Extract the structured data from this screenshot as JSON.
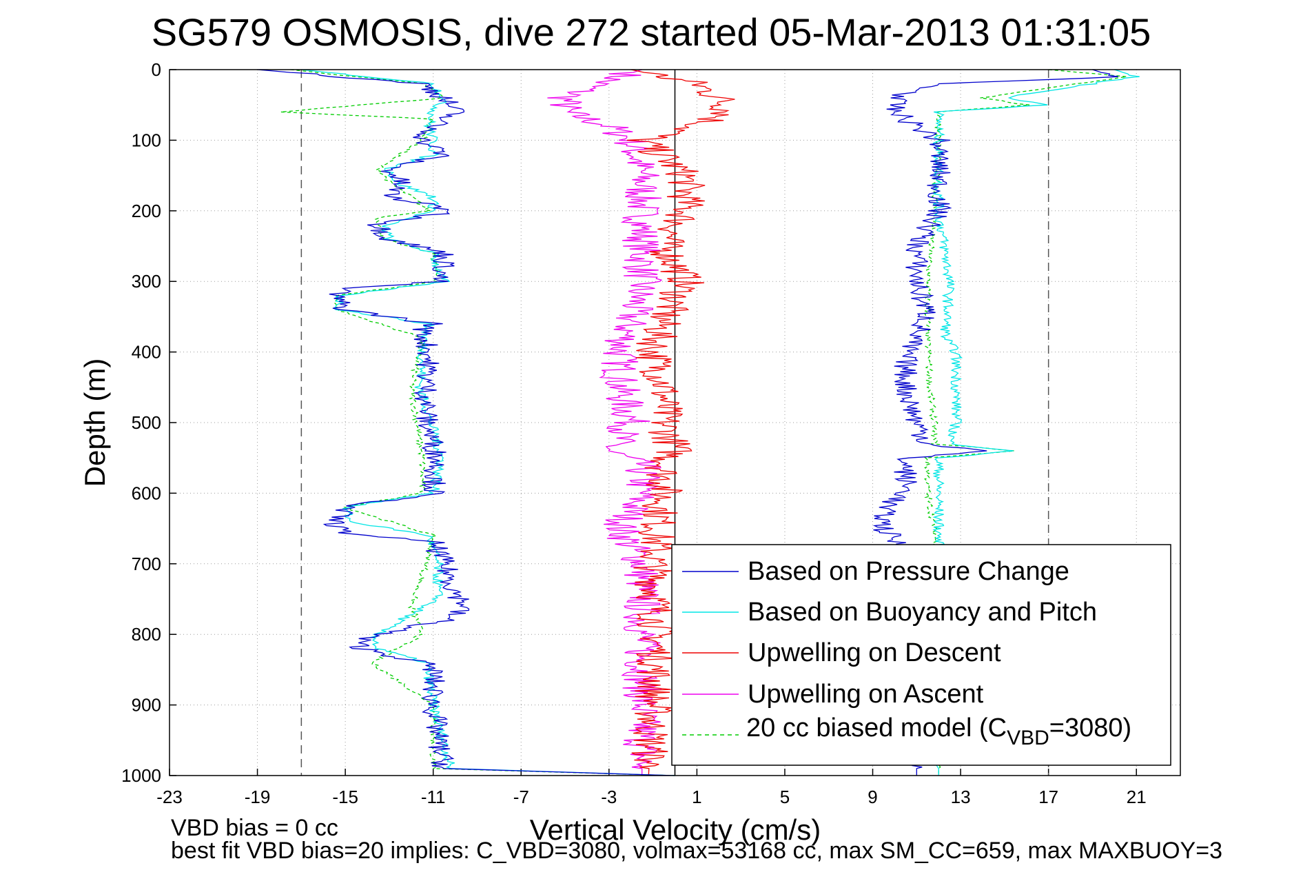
{
  "chart_data": {
    "type": "line",
    "title": "SG579 OSMOSIS, dive 272 started 05-Mar-2013 01:31:05",
    "xlabel": "Vertical Velocity (cm/s)",
    "ylabel": "Depth (m)",
    "xlim": [
      -23,
      23
    ],
    "ylim": [
      0,
      1000
    ],
    "y_reversed": true,
    "x_ticks": [
      "-23",
      "-19",
      "-15",
      "-11",
      "-7",
      "-3",
      "1",
      "5",
      "9",
      "13",
      "17",
      "21"
    ],
    "y_ticks": [
      "0",
      "100",
      "200",
      "300",
      "400",
      "500",
      "600",
      "700",
      "800",
      "900",
      "1000"
    ],
    "grid": "dotted",
    "vertical_lines": [
      {
        "x": 0,
        "style": "solid",
        "color": "#000000"
      },
      {
        "x": -17,
        "style": "dashed",
        "color": "#555555"
      },
      {
        "x": 17,
        "style": "dashed",
        "color": "#555555"
      }
    ],
    "footnotes": [
      "VBD bias = 0 cc",
      "best fit VBD bias=20 implies: C_VBD=3080, volmax=53168 cc, max SM_CC=659, max MAXBUOY=3"
    ],
    "legend": {
      "position": "bottom-right",
      "entries": [
        {
          "label": "Based on Pressure Change",
          "color": "#0000cc",
          "style": "solid"
        },
        {
          "label": "Based on Buoyancy and Pitch",
          "color": "#00e5e5",
          "style": "solid"
        },
        {
          "label": "Upwelling on Descent",
          "color": "#ee0000",
          "style": "solid"
        },
        {
          "label": "Upwelling on Ascent",
          "color": "#ee00ee",
          "style": "solid"
        },
        {
          "label": "20 cc biased model (C_VBD=3080)",
          "label_main": "20 cc biased model (C",
          "label_sub": "VBD",
          "label_end": "=3080)",
          "color": "#00cc00",
          "style": "dashed"
        }
      ]
    },
    "series": [
      {
        "color": "#0000cc",
        "profile": "pressure_change",
        "descent_depths": [
          0,
          20,
          40,
          60,
          80,
          100,
          120,
          140,
          160,
          180,
          200,
          220,
          240,
          260,
          280,
          300,
          310,
          320,
          340,
          360,
          370,
          400,
          450,
          500,
          550,
          600,
          620,
          640,
          655,
          670,
          700,
          740,
          760,
          780,
          800,
          810,
          820,
          840,
          850,
          900,
          950,
          990,
          1000
        ],
        "descent_values": [
          -19,
          -11.5,
          -10.5,
          -10,
          -11,
          -11.5,
          -10.5,
          -13,
          -12.5,
          -13,
          -10,
          -13.5,
          -13,
          -10.5,
          -10.5,
          -10.8,
          -15,
          -15.5,
          -15,
          -11,
          -11.5,
          -11.2,
          -11.3,
          -11.3,
          -10.8,
          -11,
          -15,
          -15.5,
          -15.2,
          -11,
          -10.5,
          -10,
          -9.5,
          -10.5,
          -13.5,
          -14.5,
          -14.2,
          -11.5,
          -11,
          -11,
          -10.8,
          -10.5,
          0
        ],
        "ascent_depths": [
          0,
          10,
          20,
          40,
          60,
          80,
          100,
          120,
          150,
          180,
          200,
          250,
          300,
          350,
          400,
          450,
          500,
          530,
          540,
          550,
          580,
          600,
          620,
          650,
          700,
          800,
          900,
          1000
        ],
        "ascent_values": [
          19,
          20,
          12,
          10,
          10,
          11,
          12,
          12,
          12,
          12,
          12,
          11,
          11,
          11.5,
          10.5,
          10.5,
          11,
          11.5,
          14,
          10.5,
          10.5,
          10.5,
          9.5,
          9.5,
          11,
          11,
          11,
          11
        ]
      },
      {
        "color": "#00e5e5",
        "profile": "buoyancy_pitch",
        "descent_depths": [
          0,
          20,
          40,
          60,
          80,
          100,
          120,
          140,
          160,
          180,
          200,
          220,
          240,
          260,
          280,
          300,
          320,
          340,
          360,
          380,
          450,
          550,
          600,
          620,
          640,
          660,
          700,
          750,
          800,
          820,
          840,
          900,
          990,
          1000
        ],
        "descent_values": [
          -17,
          -11,
          -10.5,
          -11,
          -11.2,
          -11,
          -11,
          -13,
          -12.7,
          -11,
          -11,
          -13.2,
          -13,
          -11,
          -10.8,
          -10.5,
          -15.2,
          -15.3,
          -11.2,
          -11.4,
          -11.6,
          -10.6,
          -11,
          -15,
          -14.8,
          -11.2,
          -10.8,
          -10.8,
          -13.6,
          -13.6,
          -11.3,
          -11,
          -10.2,
          0
        ],
        "ascent_depths": [
          0,
          10,
          40,
          50,
          60,
          100,
          200,
          300,
          380,
          400,
          450,
          500,
          530,
          540,
          550,
          600,
          700,
          800,
          900,
          1000
        ],
        "ascent_values": [
          20,
          21,
          15,
          17,
          12,
          12,
          12,
          12.5,
          12.3,
          12.8,
          12.8,
          12.8,
          12.5,
          15.5,
          12,
          12,
          12,
          12,
          12,
          12
        ]
      },
      {
        "color": "#00cc00",
        "dashed": true,
        "profile": "biased_model",
        "descent_depths": [
          0,
          20,
          40,
          60,
          70,
          100,
          140,
          160,
          180,
          200,
          210,
          240,
          260,
          300,
          320,
          340,
          380,
          450,
          550,
          600,
          620,
          660,
          700,
          760,
          800,
          840,
          900,
          990,
          1000
        ],
        "descent_values": [
          -17.5,
          -11.5,
          -10.5,
          -18,
          -11,
          -11.5,
          -13.5,
          -13,
          -12,
          -11.2,
          -13.5,
          -13.3,
          -11,
          -10.8,
          -15.4,
          -15.4,
          -11.5,
          -12,
          -11.5,
          -11.5,
          -15,
          -11,
          -11.3,
          -12,
          -11.5,
          -13.8,
          -11,
          -11,
          0
        ],
        "ascent_depths": [
          0,
          10,
          40,
          50,
          60,
          100,
          200,
          300,
          380,
          450,
          500,
          530,
          540,
          550,
          600,
          650,
          700,
          800,
          900,
          1000
        ],
        "ascent_values": [
          17,
          20.5,
          14,
          16,
          12,
          12,
          11.8,
          11.5,
          11.5,
          11.6,
          11.8,
          11.8,
          15.5,
          11.5,
          11.5,
          11.8,
          12,
          12,
          12,
          12
        ]
      },
      {
        "color": "#ee0000",
        "profile": "upwelling_descent",
        "depths": [
          0,
          20,
          40,
          60,
          80,
          100,
          150,
          200,
          250,
          300,
          350,
          400,
          450,
          500,
          540,
          560,
          600,
          650,
          700,
          800,
          900,
          1000
        ],
        "values": [
          -2,
          1,
          2,
          2.5,
          1,
          -1.5,
          0.5,
          0.5,
          -0.5,
          0.5,
          -0.5,
          -1,
          -0.5,
          -0.5,
          0,
          -0.5,
          -0.5,
          -0.8,
          -1,
          -0.8,
          -1,
          -1.2
        ]
      },
      {
        "color": "#ee00ee",
        "profile": "upwelling_ascent",
        "depths": [
          0,
          20,
          40,
          60,
          80,
          100,
          150,
          200,
          250,
          300,
          350,
          400,
          450,
          500,
          540,
          560,
          600,
          650,
          700,
          800,
          900,
          1000
        ],
        "values": [
          -1.5,
          -3.5,
          -5,
          -5,
          -3,
          -2,
          -1.5,
          -1.5,
          -1.5,
          -1.5,
          -2,
          -2.5,
          -2.5,
          -2,
          -3,
          -1.5,
          -1.5,
          -2.5,
          -1.5,
          -1.5,
          -1.5,
          -1.5
        ]
      }
    ]
  }
}
